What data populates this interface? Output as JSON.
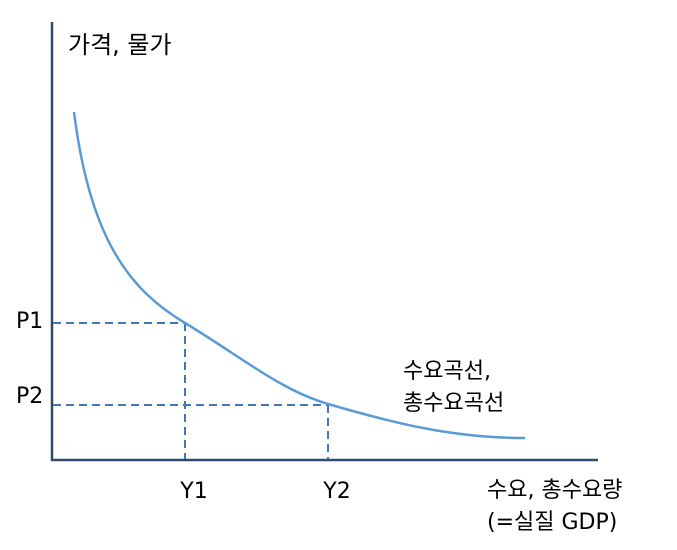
{
  "axes": {
    "y_label": "가격, 물가",
    "x_label": [
      "수요, 총수요량",
      "(=실질 GDP)"
    ]
  },
  "curve": {
    "label": [
      "수요곡선,",
      "총수요곡선"
    ]
  },
  "points": [
    {
      "x_label": "Y1",
      "y_label": "P1"
    },
    {
      "x_label": "Y2",
      "y_label": "P2"
    }
  ]
}
